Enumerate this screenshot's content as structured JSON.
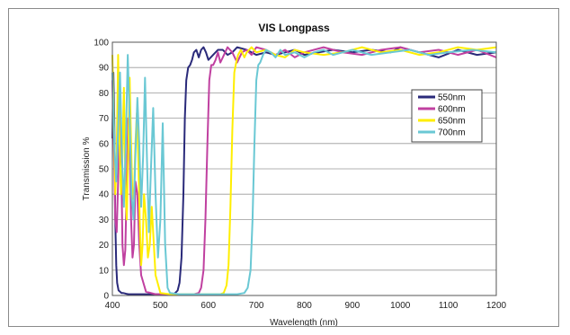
{
  "chart_data": {
    "type": "line",
    "title": "VIS Longpass",
    "xlabel": "Wavelength (nm)",
    "ylabel": "Transmission %",
    "xlim": [
      400,
      1200
    ],
    "ylim": [
      0,
      100
    ],
    "xticks": [
      400,
      500,
      600,
      700,
      800,
      900,
      1000,
      1100,
      1200
    ],
    "yticks": [
      0,
      10,
      20,
      30,
      40,
      50,
      60,
      70,
      80,
      90,
      100
    ],
    "grid": "horizontal",
    "legend_position": "right",
    "series": [
      {
        "name": "550nm",
        "color": "#2a2a7a",
        "x": [
          400,
          402,
          404,
          406,
          408,
          410,
          413,
          416,
          419,
          422,
          426,
          430,
          434,
          438,
          442,
          446,
          450,
          460,
          480,
          500,
          520,
          530,
          536,
          540,
          544,
          548,
          551,
          554,
          558,
          562,
          566,
          570,
          575,
          580,
          585,
          590,
          595,
          600,
          610,
          620,
          630,
          640,
          650,
          660,
          680,
          700,
          720,
          740,
          760,
          780,
          800,
          830,
          860,
          900,
          940,
          980,
          1000,
          1040,
          1080,
          1120,
          1160,
          1200
        ],
        "y": [
          62,
          88,
          70,
          30,
          12,
          5,
          2,
          1.5,
          1,
          1,
          0.8,
          0.6,
          0.5,
          0.5,
          0.5,
          0.5,
          0.5,
          0.5,
          0.5,
          0.5,
          0.5,
          0.8,
          2,
          5,
          15,
          40,
          70,
          85,
          90,
          91,
          93,
          96,
          97,
          94,
          97,
          98,
          96,
          93,
          95,
          97,
          97,
          95,
          96,
          98,
          97,
          95,
          96,
          95,
          96,
          97,
          95,
          96,
          97,
          96,
          97,
          96,
          98,
          96,
          94,
          97,
          95,
          96
        ]
      },
      {
        "name": "600nm",
        "color": "#c040a0",
        "x": [
          400,
          403,
          406,
          409,
          412,
          415,
          418,
          421,
          424,
          427,
          430,
          433,
          436,
          439,
          442,
          445,
          448,
          452,
          456,
          460,
          470,
          490,
          510,
          540,
          570,
          580,
          585,
          590,
          594,
          598,
          602,
          606,
          610,
          615,
          620,
          625,
          630,
          640,
          650,
          660,
          670,
          680,
          690,
          700,
          720,
          740,
          760,
          780,
          800,
          840,
          880,
          920,
          960,
          1000,
          1040,
          1080,
          1120,
          1160,
          1200
        ],
        "y": [
          85,
          60,
          30,
          25,
          45,
          75,
          60,
          20,
          12,
          18,
          45,
          70,
          62,
          30,
          15,
          20,
          45,
          40,
          20,
          8,
          1.5,
          0.5,
          0.5,
          0.5,
          0.5,
          1,
          3,
          10,
          30,
          60,
          85,
          91,
          91,
          93,
          96,
          92,
          94,
          98,
          96,
          92,
          96,
          97,
          95,
          98,
          97,
          95,
          97,
          94,
          96,
          98,
          96,
          95,
          97,
          98,
          96,
          97,
          95,
          97,
          94
        ]
      },
      {
        "name": "650nm",
        "color": "#ffee00",
        "x": [
          400,
          403,
          406,
          409,
          412,
          415,
          418,
          421,
          424,
          427,
          430,
          433,
          436,
          439,
          442,
          445,
          448,
          451,
          454,
          457,
          460,
          463,
          466,
          470,
          474,
          478,
          482,
          490,
          500,
          520,
          560,
          600,
          625,
          632,
          638,
          642,
          646,
          650,
          654,
          658,
          662,
          668,
          675,
          680,
          690,
          700,
          720,
          740,
          760,
          780,
          800,
          840,
          880,
          920,
          960,
          1000,
          1040,
          1080,
          1120,
          1160,
          1200
        ],
        "y": [
          95,
          70,
          40,
          55,
          95,
          60,
          40,
          55,
          82,
          45,
          30,
          55,
          86,
          60,
          38,
          40,
          60,
          72,
          55,
          30,
          12,
          20,
          40,
          30,
          15,
          20,
          35,
          8,
          1,
          0.5,
          0.5,
          0.5,
          0.5,
          1,
          4,
          12,
          35,
          65,
          88,
          92,
          95,
          97,
          94,
          96,
          98,
          96,
          97,
          95,
          94,
          97,
          96,
          95,
          96,
          98,
          96,
          97,
          95,
          96,
          98,
          97,
          98
        ]
      },
      {
        "name": "700nm",
        "color": "#6ac8d4",
        "x": [
          400,
          404,
          408,
          412,
          416,
          420,
          424,
          428,
          432,
          436,
          440,
          444,
          448,
          452,
          456,
          460,
          464,
          468,
          472,
          476,
          480,
          485,
          490,
          495,
          500,
          505,
          510,
          515,
          520,
          540,
          580,
          620,
          660,
          675,
          682,
          688,
          692,
          696,
          700,
          704,
          708,
          714,
          720,
          730,
          740,
          750,
          760,
          780,
          800,
          820,
          840,
          860,
          880,
          900,
          940,
          980,
          1020,
          1060,
          1100,
          1150,
          1200
        ],
        "y": [
          88,
          60,
          45,
          65,
          88,
          55,
          35,
          60,
          95,
          70,
          40,
          30,
          55,
          78,
          60,
          35,
          55,
          86,
          55,
          25,
          48,
          74,
          40,
          15,
          30,
          68,
          20,
          3,
          1,
          0.5,
          0.5,
          0.5,
          0.5,
          1,
          3,
          10,
          30,
          60,
          85,
          91,
          92,
          95,
          97,
          96,
          94,
          97,
          95,
          96,
          94,
          96,
          97,
          95,
          96,
          97,
          95,
          96,
          97,
          95,
          96,
          97,
          96
        ]
      }
    ]
  }
}
